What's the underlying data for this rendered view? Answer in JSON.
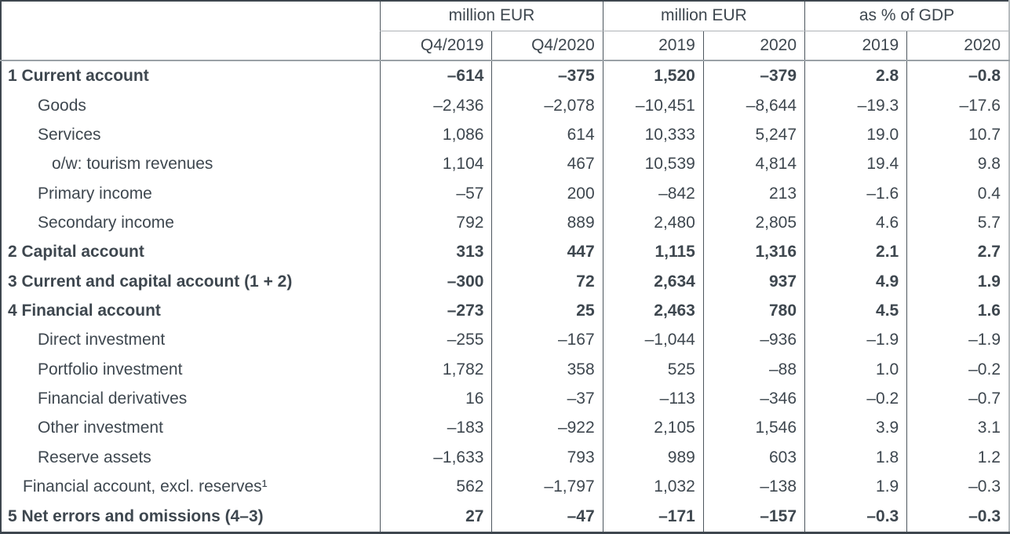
{
  "chart_data": {
    "type": "table",
    "column_groups": [
      {
        "label": "million EUR",
        "columns": [
          "Q4/2019",
          "Q4/2020"
        ]
      },
      {
        "label": "million EUR",
        "columns": [
          "2019",
          "2020"
        ]
      },
      {
        "label": "as % of GDP",
        "columns": [
          "2019",
          "2020"
        ]
      }
    ],
    "rows": [
      {
        "label": "1 Current account",
        "bold": true,
        "indent": 0,
        "values": [
          "–614",
          "–375",
          "1,520",
          "–379",
          "2.8",
          "–0.8"
        ]
      },
      {
        "label": "Goods",
        "bold": false,
        "indent": 2,
        "values": [
          "–2,436",
          "–2,078",
          "–10,451",
          "–8,644",
          "–19.3",
          "–17.6"
        ]
      },
      {
        "label": "Services",
        "bold": false,
        "indent": 2,
        "values": [
          "1,086",
          "614",
          "10,333",
          "5,247",
          "19.0",
          "10.7"
        ]
      },
      {
        "label": "o/w: tourism revenues",
        "bold": false,
        "indent": 3,
        "values": [
          "1,104",
          "467",
          "10,539",
          "4,814",
          "19.4",
          "9.8"
        ]
      },
      {
        "label": "Primary income",
        "bold": false,
        "indent": 2,
        "values": [
          "–57",
          "200",
          "–842",
          "213",
          "–1.6",
          "0.4"
        ]
      },
      {
        "label": "Secondary income",
        "bold": false,
        "indent": 2,
        "values": [
          "792",
          "889",
          "2,480",
          "2,805",
          "4.6",
          "5.7"
        ]
      },
      {
        "label": "2 Capital account",
        "bold": true,
        "indent": 0,
        "values": [
          "313",
          "447",
          "1,115",
          "1,316",
          "2.1",
          "2.7"
        ]
      },
      {
        "label": "3 Current and capital account (1 + 2)",
        "bold": true,
        "indent": 0,
        "values": [
          "–300",
          "72",
          "2,634",
          "937",
          "4.9",
          "1.9"
        ]
      },
      {
        "label": "4 Financial account",
        "bold": true,
        "indent": 0,
        "values": [
          "–273",
          "25",
          "2,463",
          "780",
          "4.5",
          "1.6"
        ]
      },
      {
        "label": "Direct investment",
        "bold": false,
        "indent": 2,
        "values": [
          "–255",
          "–167",
          "–1,044",
          "–936",
          "–1.9",
          "–1.9"
        ]
      },
      {
        "label": "Portfolio investment",
        "bold": false,
        "indent": 2,
        "values": [
          "1,782",
          "358",
          "525",
          "–88",
          "1.0",
          "–0.2"
        ]
      },
      {
        "label": "Financial derivatives",
        "bold": false,
        "indent": 2,
        "values": [
          "16",
          "–37",
          "–113",
          "–346",
          "–0.2",
          "–0.7"
        ]
      },
      {
        "label": "Other investment",
        "bold": false,
        "indent": 2,
        "values": [
          "–183",
          "–922",
          "2,105",
          "1,546",
          "3.9",
          "3.1"
        ]
      },
      {
        "label": "Reserve assets",
        "bold": false,
        "indent": 2,
        "values": [
          "–1,633",
          "793",
          "989",
          "603",
          "1.8",
          "1.2"
        ]
      },
      {
        "label": "Financial account, excl. reserves¹",
        "bold": false,
        "indent": 1,
        "values": [
          "562",
          "–1,797",
          "1,032",
          "–138",
          "1.9",
          "–0.3"
        ]
      },
      {
        "label": "5 Net errors and omissions (4–3)",
        "bold": true,
        "indent": 0,
        "values": [
          "27",
          "–47",
          "–171",
          "–157",
          "–0.3",
          "–0.3"
        ]
      }
    ],
    "colors": {
      "text": "#3e474f",
      "rule_dark": "#4d565e",
      "rule_gray": "#9aa1a6",
      "rule_light": "#aeb3b7",
      "background": "#ffffff"
    }
  }
}
